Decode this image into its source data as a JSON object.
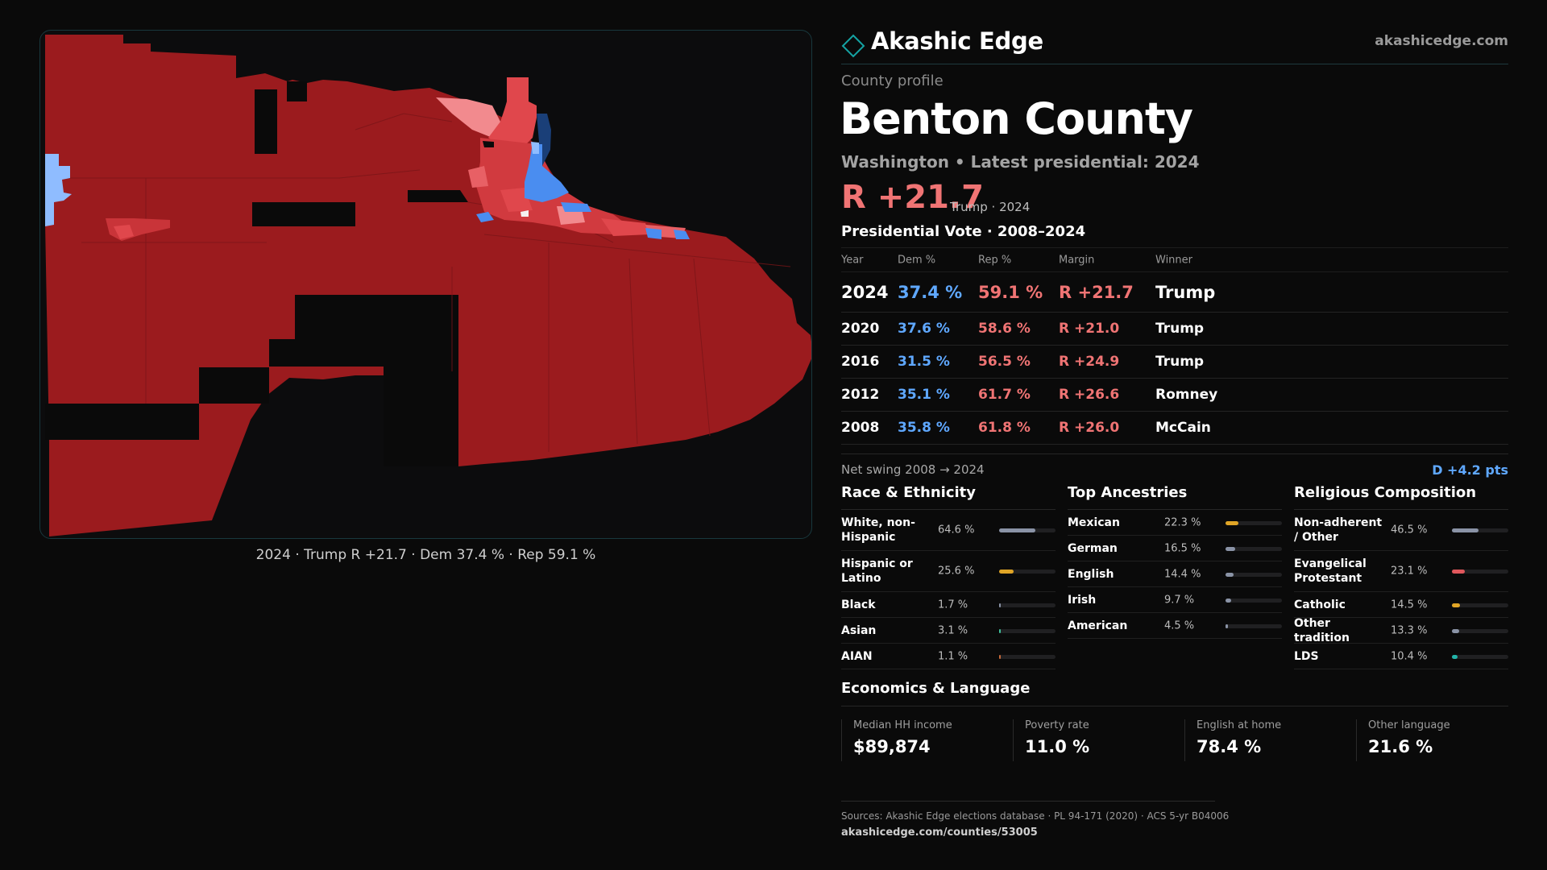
{
  "brand": {
    "name": "Akashic Edge",
    "url": "akashicedge.com",
    "accent": "#15a3a3"
  },
  "profile": {
    "label": "County profile",
    "county": "Benton County",
    "state": "Washington",
    "latest": "Latest presidential: 2024",
    "headline_margin": "R +21.7",
    "headline_winner": "Trump · 2024"
  },
  "map": {
    "caption": "2024 · Trump R +21.7 · Dem 37.4 % · Rep 59.1 %",
    "colors": {
      "dark_red": "#9b1b1e",
      "red": "#e0474c",
      "light_red": "#f28a8e",
      "blue": "#4a8df0",
      "light_blue": "#8fbcff",
      "dark_blue": "#1a3f78"
    }
  },
  "vote": {
    "title": "Presidential Vote · 2008–2024",
    "headers": {
      "year": "Year",
      "dem": "Dem %",
      "rep": "Rep %",
      "margin": "Margin",
      "winner": "Winner"
    },
    "rows": [
      {
        "year": "2024",
        "dem": "37.4 %",
        "rep": "59.1 %",
        "margin": "R +21.7",
        "winner": "Trump"
      },
      {
        "year": "2020",
        "dem": "37.6 %",
        "rep": "58.6 %",
        "margin": "R +21.0",
        "winner": "Trump"
      },
      {
        "year": "2016",
        "dem": "31.5 %",
        "rep": "56.5 %",
        "margin": "R +24.9",
        "winner": "Trump"
      },
      {
        "year": "2012",
        "dem": "35.1 %",
        "rep": "61.7 %",
        "margin": "R +26.6",
        "winner": "Romney"
      },
      {
        "year": "2008",
        "dem": "35.8 %",
        "rep": "61.8 %",
        "margin": "R +26.0",
        "winner": "McCain"
      }
    ],
    "swing_label": "Net swing 2008 → 2024",
    "swing_value": "D +4.2 pts"
  },
  "race": {
    "title": "Race & Ethnicity",
    "rows": [
      {
        "label": "White, non-Hispanic",
        "value": "64.6 %",
        "pct": 64.6,
        "color": "#8a93a6"
      },
      {
        "label": "Hispanic or Latino",
        "value": "25.6 %",
        "pct": 25.6,
        "color": "#e0a526"
      },
      {
        "label": "Black",
        "value": "1.7 %",
        "pct": 1.7,
        "color": "#8a93a6"
      },
      {
        "label": "Asian",
        "value": "3.1 %",
        "pct": 3.1,
        "color": "#3fbf9a"
      },
      {
        "label": "AIAN",
        "value": "1.1 %",
        "pct": 1.1,
        "color": "#c96a3a"
      }
    ]
  },
  "ancestry": {
    "title": "Top Ancestries",
    "rows": [
      {
        "label": "Mexican",
        "value": "22.3 %",
        "pct": 22.3,
        "color": "#e0a526"
      },
      {
        "label": "German",
        "value": "16.5 %",
        "pct": 16.5,
        "color": "#8a93a6"
      },
      {
        "label": "English",
        "value": "14.4 %",
        "pct": 14.4,
        "color": "#8a93a6"
      },
      {
        "label": "Irish",
        "value": "9.7 %",
        "pct": 9.7,
        "color": "#8a93a6"
      },
      {
        "label": "American",
        "value": "4.5 %",
        "pct": 4.5,
        "color": "#8a93a6"
      }
    ]
  },
  "religion": {
    "title": "Religious Composition",
    "rows": [
      {
        "label": "Non-adherent / Other",
        "value": "46.5 %",
        "pct": 46.5,
        "color": "#8a93a6"
      },
      {
        "label": "Evangelical Protestant",
        "value": "23.1 %",
        "pct": 23.1,
        "color": "#e0575c"
      },
      {
        "label": "Catholic",
        "value": "14.5 %",
        "pct": 14.5,
        "color": "#e0a526"
      },
      {
        "label": "Other tradition",
        "value": "13.3 %",
        "pct": 13.3,
        "color": "#8a93a6"
      },
      {
        "label": "LDS",
        "value": "10.4 %",
        "pct": 10.4,
        "color": "#22b3a8"
      }
    ]
  },
  "economics": {
    "title": "Economics & Language",
    "cards": [
      {
        "label": "Median HH income",
        "value": "$89,874"
      },
      {
        "label": "Poverty rate",
        "value": "11.0 %"
      },
      {
        "label": "English at home",
        "value": "78.4 %"
      },
      {
        "label": "Other language",
        "value": "21.6 %"
      }
    ]
  },
  "sources": {
    "text": "Sources: Akashic Edge elections database · PL 94-171 (2020) · ACS 5-yr B04006",
    "url": "akashicedge.com/counties/53005"
  }
}
